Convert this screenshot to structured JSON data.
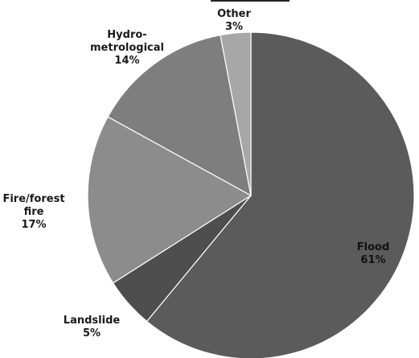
{
  "chart_data": {
    "type": "pie",
    "start_angle_deg": 0,
    "direction": "clockwise",
    "slices": [
      {
        "label": "Flood",
        "value": 61,
        "value_label": "61%",
        "color": "#5b5b5b"
      },
      {
        "label": "Landslide",
        "value": 5,
        "value_label": "5%",
        "color": "#4e4e4e"
      },
      {
        "label": "Fire/forest fire",
        "value_lines": [
          "Fire/forest",
          "fire"
        ],
        "value_label": "17%",
        "value": 17,
        "color": "#8c8c8c"
      },
      {
        "label": "Hydro-metrological",
        "value_lines": [
          "Hydro-",
          "metrological"
        ],
        "value_label": "14%",
        "value": 14,
        "color": "#7e7e7e"
      },
      {
        "label": "Other",
        "value": 3,
        "value_label": "3%",
        "color": "#a7a7a7"
      }
    ]
  }
}
